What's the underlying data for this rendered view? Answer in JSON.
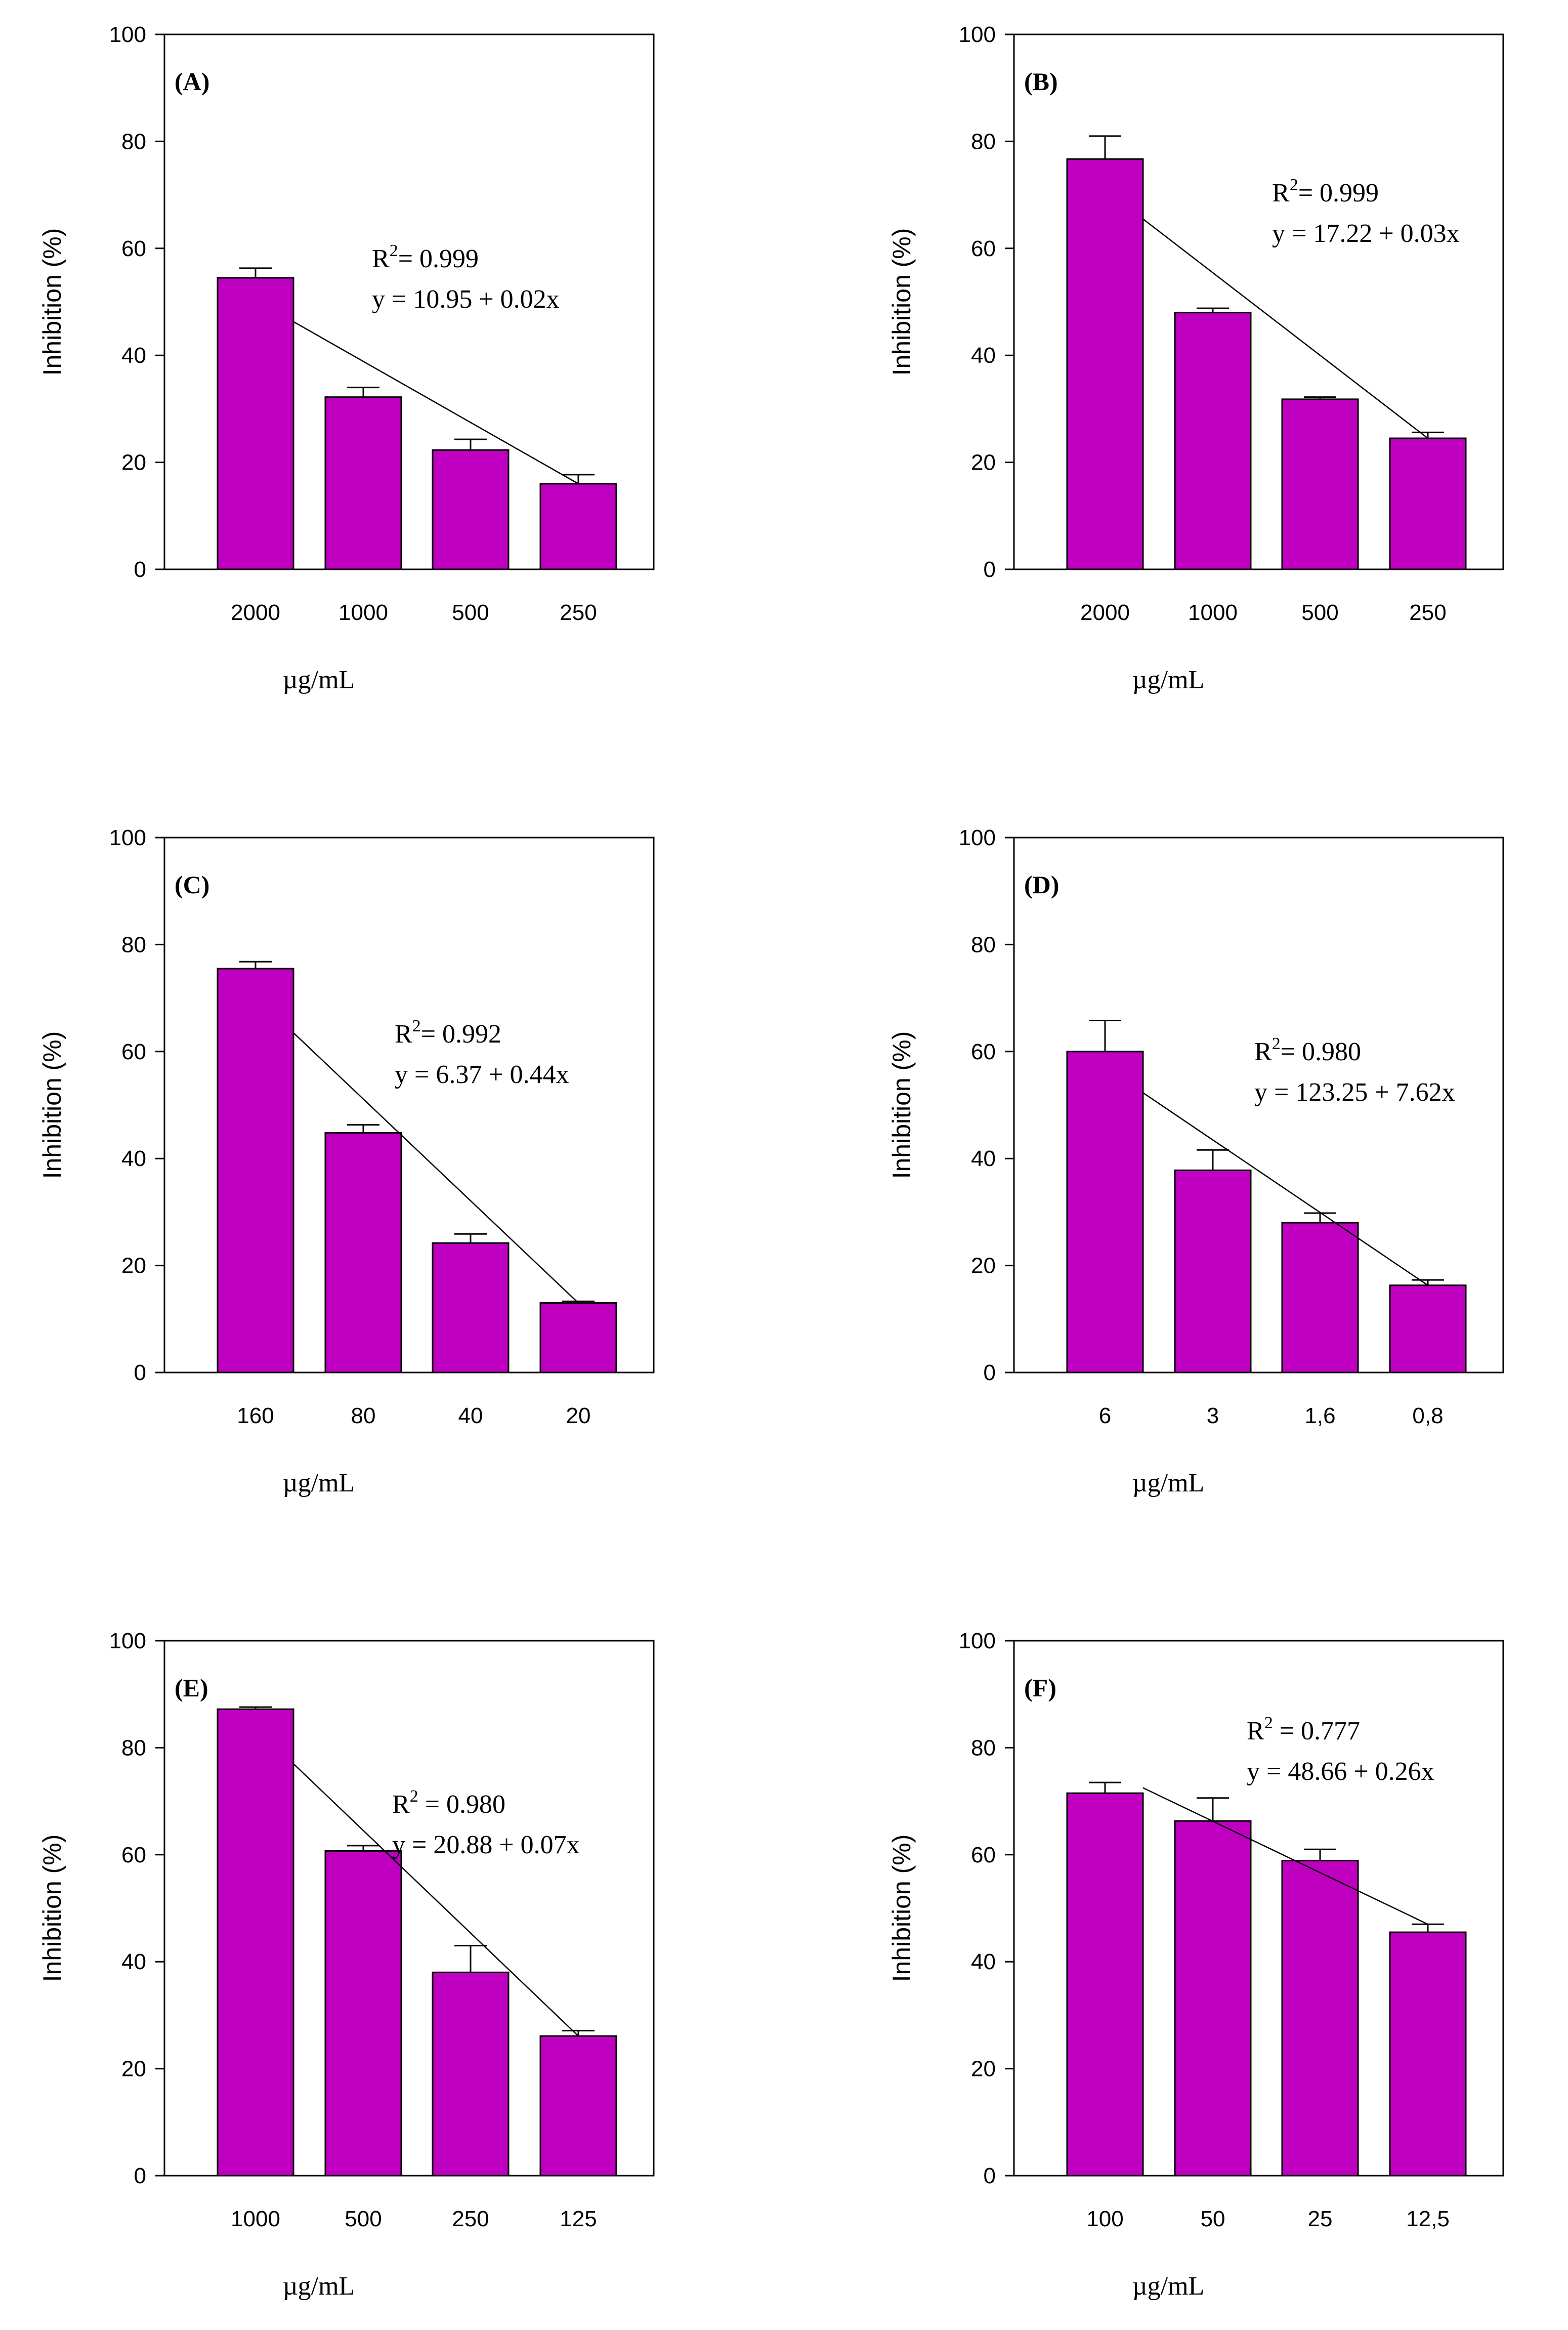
{
  "colors": {
    "bar": "#c000c0",
    "stroke": "#000000",
    "background": "#ffffff"
  },
  "chart_data": [
    {
      "type": "bar",
      "panel": "(A)",
      "categories": [
        "2000",
        "1000",
        "500",
        "250"
      ],
      "values": [
        54.5,
        32.2,
        22.3,
        16.0
      ],
      "errors": [
        1.8,
        1.8,
        2.0,
        1.7
      ],
      "ylim": [
        0,
        100
      ],
      "yticks": [
        "0",
        "20",
        "40",
        "60",
        "80",
        "100"
      ],
      "xlabel": "µg/mL",
      "ylabel": "Inhibition (%)",
      "r2_prefix": "R",
      "r2_sup": "2",
      "r2_value": "= 0.999",
      "equation": "y = 10.95 + 0.02x",
      "fit_line": [
        46.3,
        16.0
      ]
    },
    {
      "type": "bar",
      "panel": "(B)",
      "categories": [
        "2000",
        "1000",
        "500",
        "250"
      ],
      "values": [
        76.7,
        48.0,
        31.8,
        24.5
      ],
      "errors": [
        4.3,
        0.8,
        0.4,
        1.1
      ],
      "ylim": [
        0,
        100
      ],
      "yticks": [
        "0",
        "20",
        "40",
        "60",
        "80",
        "100"
      ],
      "xlabel": "µg/mL",
      "ylabel": "Inhibition (%)",
      "r2_prefix": "R",
      "r2_sup": "2",
      "r2_value": "= 0.999",
      "equation": "y = 17.22 + 0.03x",
      "fit_line": [
        65.5,
        24.5
      ]
    },
    {
      "type": "bar",
      "panel": "(C)",
      "categories": [
        "160",
        "80",
        "40",
        "20"
      ],
      "values": [
        75.5,
        44.8,
        24.2,
        13.0
      ],
      "errors": [
        1.3,
        1.5,
        1.7,
        0.3
      ],
      "ylim": [
        0,
        100
      ],
      "yticks": [
        "0",
        "20",
        "40",
        "60",
        "80",
        "100"
      ],
      "xlabel": "µg/mL",
      "ylabel": "Inhibition (%)",
      "r2_prefix": "R",
      "r2_sup": "2",
      "r2_value": "= 0.992",
      "equation": "y = 6.37 + 0.44x",
      "fit_line": [
        63.5,
        13.0
      ]
    },
    {
      "type": "bar",
      "panel": "(D)",
      "categories": [
        "6",
        "3",
        "1,6",
        "0,8"
      ],
      "values": [
        60.0,
        37.8,
        28.0,
        16.3
      ],
      "errors": [
        5.8,
        3.8,
        1.8,
        1.0
      ],
      "ylim": [
        0,
        100
      ],
      "yticks": [
        "0",
        "20",
        "40",
        "60",
        "80",
        "100"
      ],
      "xlabel": "µg/mL",
      "ylabel": "Inhibition (%)",
      "r2_prefix": "R",
      "r2_sup": "2",
      "r2_value": "=  0.980",
      "equation": "y = 123.25 + 7.62x",
      "fit_line": [
        52.3,
        16.3
      ]
    },
    {
      "type": "bar",
      "panel": "(E)",
      "categories": [
        "1000",
        "500",
        "250",
        "125"
      ],
      "values": [
        87.2,
        60.7,
        38.0,
        26.1
      ],
      "errors": [
        0.4,
        1.0,
        5.0,
        1.0
      ],
      "ylim": [
        0,
        100
      ],
      "yticks": [
        "0",
        "20",
        "40",
        "60",
        "80",
        "100"
      ],
      "xlabel": "µg/mL",
      "ylabel": "Inhibition (%)",
      "r2_prefix": "R",
      "r2_sup": "2",
      "r2_value": " = 0.980",
      "equation": "y = 20.88 + 0.07x",
      "fit_line": [
        77.0,
        26.1
      ]
    },
    {
      "type": "bar",
      "panel": "(F)",
      "categories": [
        "100",
        "50",
        "25",
        "12,5"
      ],
      "values": [
        71.5,
        66.3,
        58.9,
        45.5
      ],
      "errors": [
        2.0,
        4.3,
        2.1,
        1.5
      ],
      "ylim": [
        0,
        100
      ],
      "yticks": [
        "0",
        "20",
        "40",
        "60",
        "80",
        "100"
      ],
      "xlabel": "µg/mL",
      "ylabel": "Inhibition (%)",
      "r2_prefix": "R",
      "r2_sup": "2",
      "r2_value": " = 0.777",
      "equation": "y = 48.66 + 0.26x",
      "fit_line": [
        72.5,
        47.0
      ]
    }
  ]
}
